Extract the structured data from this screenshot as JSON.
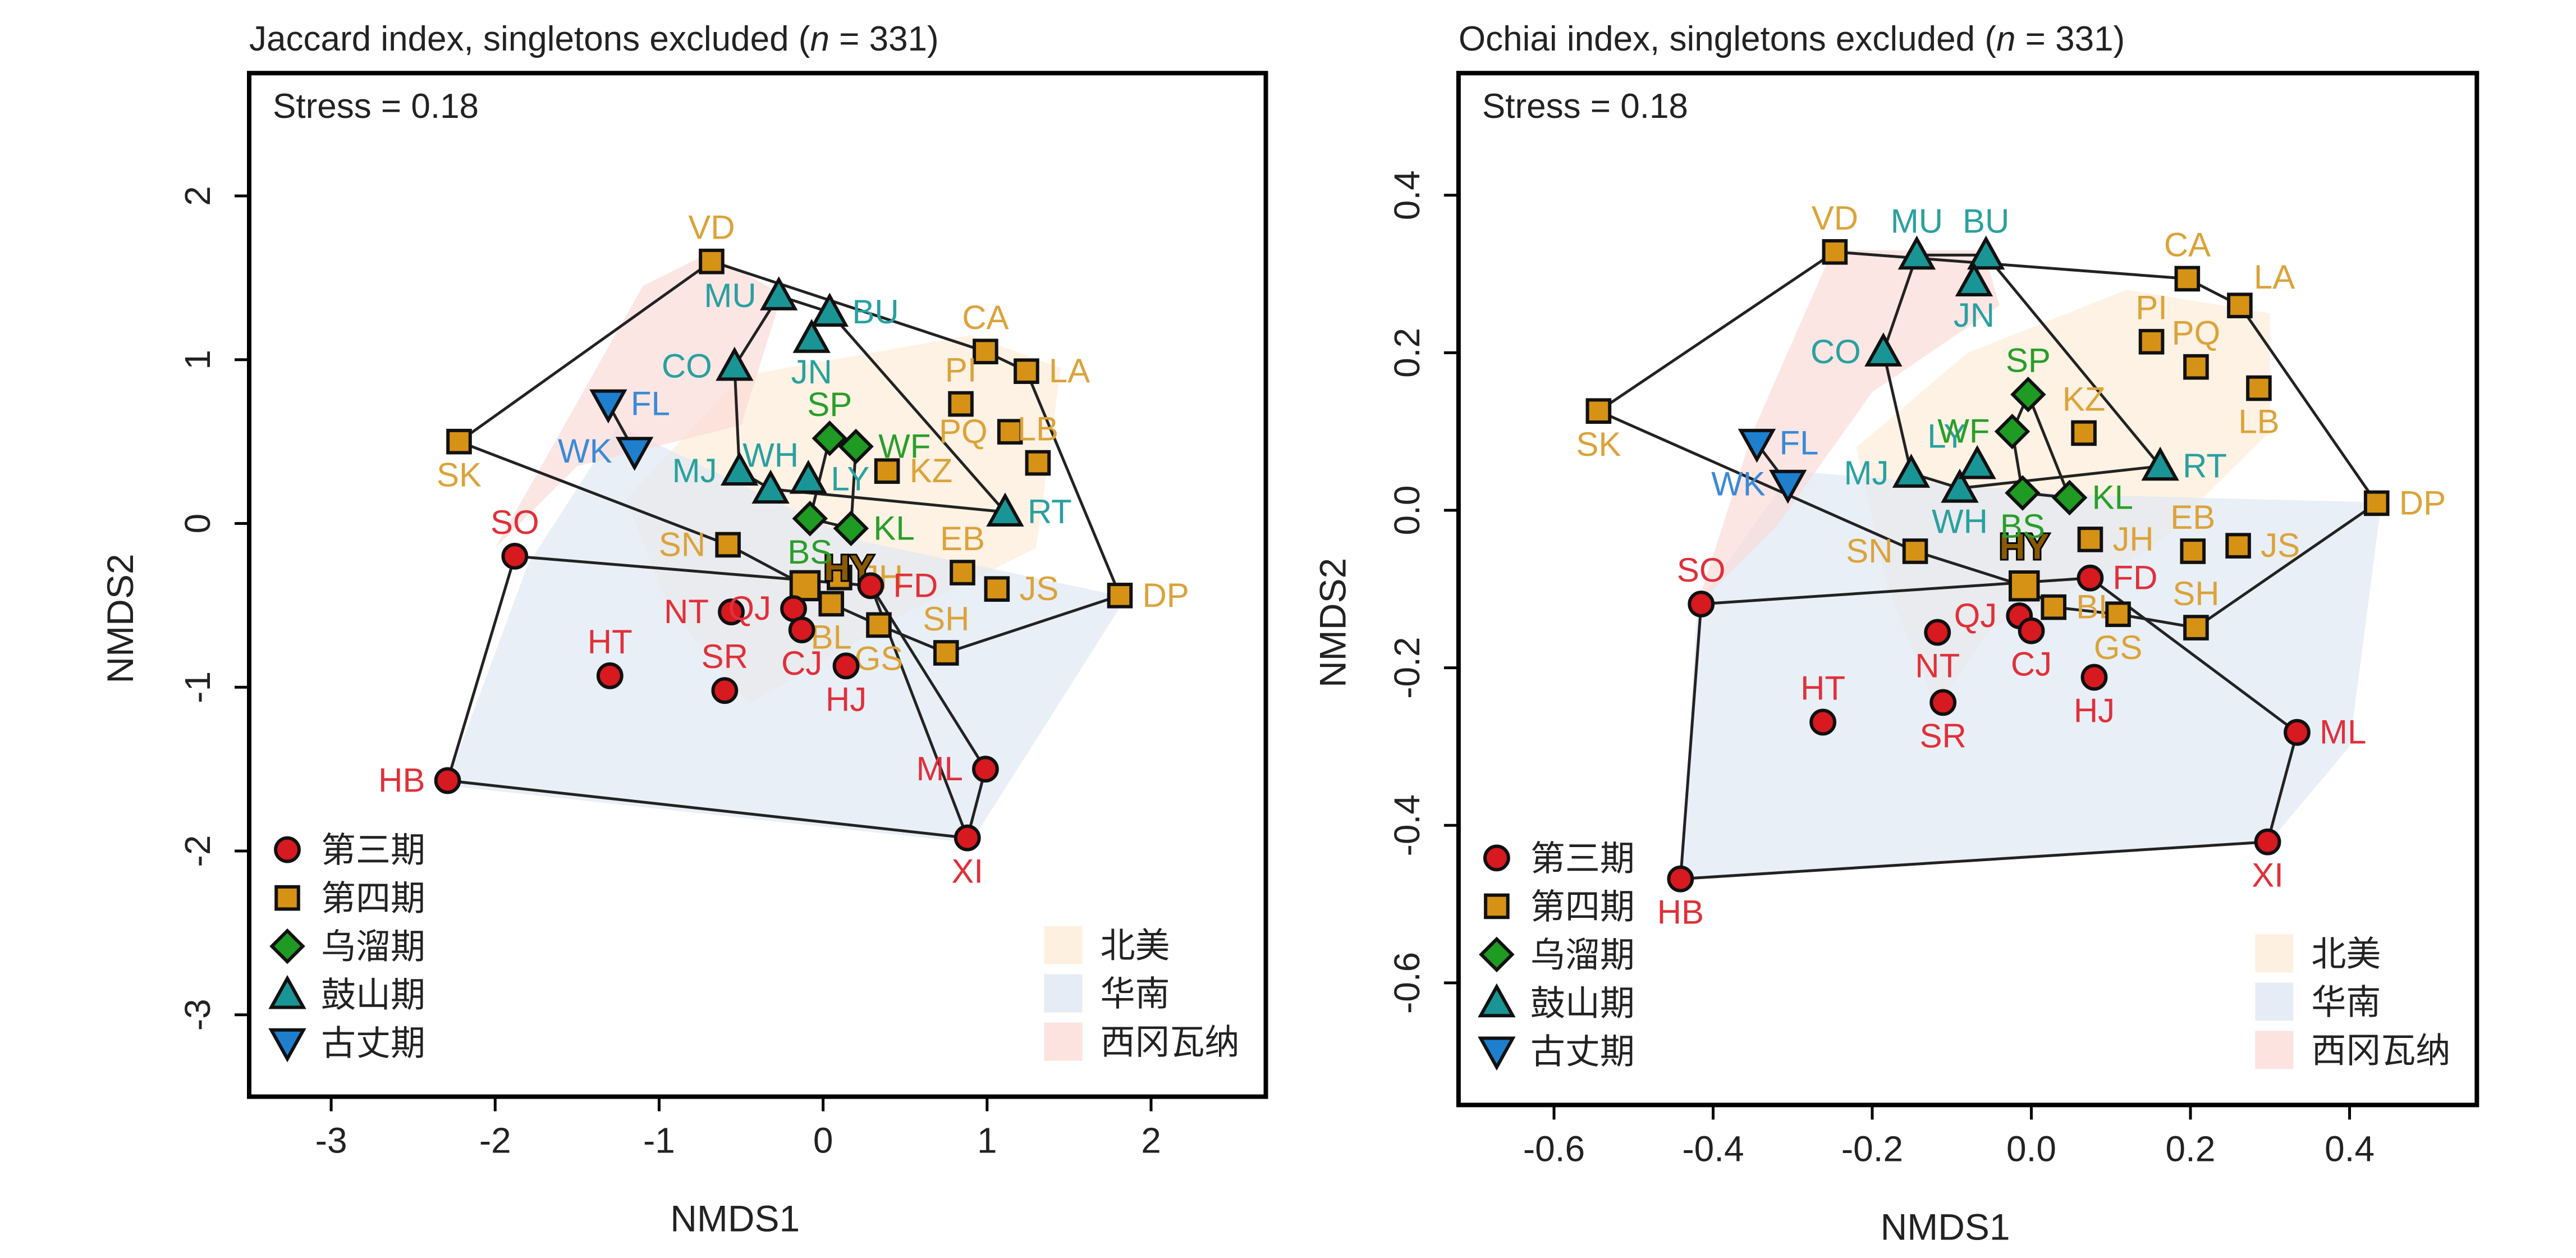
{
  "chart_data": [
    {
      "type": "scatter",
      "panel": "left",
      "title": "Jaccard index, singletons excluded (n = 331)",
      "title_parts": {
        "prefix": "Jaccard index, singletons excluded (",
        "italic": "n",
        "suffix": " = 331)"
      },
      "annotation": "Stress = 0.18",
      "xlabel": "NMDS1",
      "ylabel": "NMDS2",
      "xlim": [
        -3.5,
        2.7
      ],
      "ylim": [
        -3.5,
        2.75
      ],
      "xticks": [
        -3,
        -2,
        -1,
        0,
        1,
        2
      ],
      "xtick_labels": [
        "-3",
        "-2",
        "-1",
        "0",
        "1",
        "2"
      ],
      "yticks": [
        -3,
        -2,
        -1,
        0,
        1,
        2
      ],
      "ytick_labels": [
        "-3",
        "-2",
        "-1",
        "0",
        "1",
        "2"
      ],
      "grid": false,
      "points": [
        {
          "label": "VD",
          "group": "p4",
          "x": -0.68,
          "y": 1.6,
          "lp": "t"
        },
        {
          "label": "SK",
          "group": "p4",
          "x": -2.22,
          "y": 0.5,
          "lp": "b"
        },
        {
          "label": "CA",
          "group": "p4",
          "x": 0.99,
          "y": 1.05,
          "lp": "t"
        },
        {
          "label": "LA",
          "group": "p4",
          "x": 1.24,
          "y": 0.93,
          "lp": "r"
        },
        {
          "label": "PI",
          "group": "p4",
          "x": 0.84,
          "y": 0.73,
          "lp": "t"
        },
        {
          "label": "PQ",
          "group": "p4",
          "x": 1.14,
          "y": 0.56,
          "lp": "l"
        },
        {
          "label": "LB",
          "group": "p4",
          "x": 1.31,
          "y": 0.37,
          "lp": "t"
        },
        {
          "label": "KZ",
          "group": "p4",
          "x": 0.39,
          "y": 0.32,
          "lp": "r"
        },
        {
          "label": "SN",
          "group": "p4",
          "x": -0.58,
          "y": -0.13,
          "lp": "l"
        },
        {
          "label": "EB",
          "group": "p4",
          "x": 0.85,
          "y": -0.3,
          "lp": "t"
        },
        {
          "label": "JS",
          "group": "p4",
          "x": 1.06,
          "y": -0.4,
          "lp": "r"
        },
        {
          "label": "DP",
          "group": "p4",
          "x": 1.81,
          "y": -0.44,
          "lp": "r"
        },
        {
          "label": "JH",
          "group": "p4",
          "x": 0.1,
          "y": -0.33,
          "lp": "r"
        },
        {
          "label": "HY",
          "group": "p4",
          "x": -0.11,
          "y": -0.38,
          "lp": "hy"
        },
        {
          "label": "BL",
          "group": "p4",
          "x": 0.05,
          "y": -0.49,
          "lp": "b"
        },
        {
          "label": "GS",
          "group": "p4",
          "x": 0.34,
          "y": -0.62,
          "lp": "b"
        },
        {
          "label": "SH",
          "group": "p4",
          "x": 0.75,
          "y": -0.79,
          "lp": "t"
        },
        {
          "label": "MU",
          "group": "gushan",
          "x": -0.27,
          "y": 1.39,
          "lp": "l"
        },
        {
          "label": "BU",
          "group": "gushan",
          "x": 0.04,
          "y": 1.29,
          "lp": "r"
        },
        {
          "label": "JN",
          "group": "gushan",
          "x": -0.07,
          "y": 1.13,
          "lp": "b"
        },
        {
          "label": "CO",
          "group": "gushan",
          "x": -0.54,
          "y": 0.96,
          "lp": "l"
        },
        {
          "label": "MJ",
          "group": "gushan",
          "x": -0.51,
          "y": 0.32,
          "lp": "l"
        },
        {
          "label": "WH",
          "group": "gushan",
          "x": -0.32,
          "y": 0.21,
          "lp": "t"
        },
        {
          "label": "LY",
          "group": "gushan",
          "x": -0.09,
          "y": 0.27,
          "lp": "r"
        },
        {
          "label": "RT",
          "group": "gushan",
          "x": 1.11,
          "y": 0.07,
          "lp": "r"
        },
        {
          "label": "SP",
          "group": "wuliu",
          "x": 0.04,
          "y": 0.52,
          "lp": "t"
        },
        {
          "label": "WF",
          "group": "wuliu",
          "x": 0.2,
          "y": 0.47,
          "lp": "r"
        },
        {
          "label": "BS",
          "group": "wuliu",
          "x": -0.08,
          "y": 0.03,
          "lp": "b"
        },
        {
          "label": "KL",
          "group": "wuliu",
          "x": 0.17,
          "y": -0.03,
          "lp": "r"
        },
        {
          "label": "FL",
          "group": "guzhang",
          "x": -1.31,
          "y": 0.73,
          "lp": "r"
        },
        {
          "label": "WK",
          "group": "guzhang",
          "x": -1.15,
          "y": 0.44,
          "lp": "l"
        },
        {
          "label": "SO",
          "group": "p3",
          "x": -1.88,
          "y": -0.2,
          "lp": "t"
        },
        {
          "label": "HT",
          "group": "p3",
          "x": -1.3,
          "y": -0.93,
          "lp": "t"
        },
        {
          "label": "SR",
          "group": "p3",
          "x": -0.6,
          "y": -1.02,
          "lp": "t"
        },
        {
          "label": "NT",
          "group": "p3",
          "x": -0.56,
          "y": -0.54,
          "lp": "l"
        },
        {
          "label": "QJ",
          "group": "p3",
          "x": -0.18,
          "y": -0.52,
          "lp": "l"
        },
        {
          "label": "CJ",
          "group": "p3",
          "x": -0.13,
          "y": -0.65,
          "lp": "b"
        },
        {
          "label": "FD",
          "group": "p3",
          "x": 0.29,
          "y": -0.38,
          "lp": "r"
        },
        {
          "label": "HJ",
          "group": "p3",
          "x": 0.14,
          "y": -0.87,
          "lp": "b"
        },
        {
          "label": "ML",
          "group": "p3",
          "x": 0.99,
          "y": -1.5,
          "lp": "l"
        },
        {
          "label": "XI",
          "group": "p3",
          "x": 0.88,
          "y": -1.92,
          "lp": "b"
        },
        {
          "label": "HB",
          "group": "p3",
          "x": -2.29,
          "y": -1.57,
          "lp": "l"
        }
      ],
      "hulls": [
        {
          "group": "p4",
          "vertices": [
            "SK",
            "VD",
            "CA",
            "LA",
            "DP",
            "SH",
            "GS",
            "BL",
            "HY",
            "SN"
          ]
        },
        {
          "group": "p3",
          "vertices": [
            "SO",
            "FD",
            "XI",
            "HB"
          ],
          "extra_edges": [
            [
              "FD",
              "ML"
            ],
            [
              "ML",
              "XI"
            ]
          ]
        },
        {
          "group": "gushan",
          "vertices": [
            "MU",
            "BU",
            "RT",
            "WH",
            "MJ",
            "CO"
          ]
        },
        {
          "group": "wuliu",
          "vertices": [
            "SP",
            "WF",
            "KL",
            "BS"
          ]
        },
        {
          "group": "guzhang",
          "vertices": [
            "FL",
            "WK"
          ]
        }
      ],
      "regions": [
        {
          "key": "na",
          "polygon": [
            [
              -1.2,
              0.15
            ],
            [
              -0.5,
              0.9
            ],
            [
              0.9,
              1.15
            ],
            [
              1.45,
              0.95
            ],
            [
              1.3,
              -0.15
            ],
            [
              0.5,
              -0.55
            ],
            [
              -0.45,
              -1.1
            ],
            [
              -0.95,
              -0.5
            ]
          ]
        },
        {
          "key": "sc",
          "polygon": [
            [
              -2.3,
              -1.6
            ],
            [
              -1.8,
              -0.25
            ],
            [
              -1.25,
              0.6
            ],
            [
              0.2,
              -0.1
            ],
            [
              1.85,
              -0.45
            ],
            [
              0.9,
              -1.95
            ]
          ]
        },
        {
          "key": "wg",
          "polygon": [
            [
              -2.0,
              -0.15
            ],
            [
              -1.1,
              1.45
            ],
            [
              -0.7,
              1.65
            ],
            [
              -0.25,
              1.4
            ],
            [
              -0.5,
              0.6
            ],
            [
              -1.5,
              0.35
            ]
          ]
        }
      ]
    },
    {
      "type": "scatter",
      "panel": "right",
      "title": "Ochiai index, singletons excluded (n = 331)",
      "title_parts": {
        "prefix": "Ochiai index, singletons excluded (",
        "italic": "n",
        "suffix": " = 331)"
      },
      "annotation": "Stress = 0.18",
      "xlabel": "NMDS1",
      "ylabel": "NMDS2",
      "xlim": [
        -0.72,
        0.56
      ],
      "ylim": [
        -0.755,
        0.555
      ],
      "xticks": [
        -0.6,
        -0.4,
        -0.2,
        0.0,
        0.2,
        0.4
      ],
      "xtick_labels": [
        "-0.6",
        "-0.4",
        "-0.2",
        "0.0",
        "0.2",
        "0.4"
      ],
      "yticks": [
        -0.6,
        -0.4,
        -0.2,
        0.0,
        0.2,
        0.4
      ],
      "ytick_labels": [
        "-0.6",
        "-0.4",
        "-0.2",
        "0.0",
        "0.2",
        "0.4"
      ],
      "grid": false,
      "points": [
        {
          "label": "VD",
          "group": "p4",
          "x": -0.247,
          "y": 0.328,
          "lp": "t"
        },
        {
          "label": "SK",
          "group": "p4",
          "x": -0.544,
          "y": 0.126,
          "lp": "b"
        },
        {
          "label": "CA",
          "group": "p4",
          "x": 0.196,
          "y": 0.294,
          "lp": "t"
        },
        {
          "label": "LA",
          "group": "p4",
          "x": 0.262,
          "y": 0.26,
          "lp": "tr"
        },
        {
          "label": "PI",
          "group": "p4",
          "x": 0.151,
          "y": 0.214,
          "lp": "t"
        },
        {
          "label": "PQ",
          "group": "p4",
          "x": 0.207,
          "y": 0.182,
          "lp": "t"
        },
        {
          "label": "LB",
          "group": "p4",
          "x": 0.286,
          "y": 0.155,
          "lp": "b"
        },
        {
          "label": "KZ",
          "group": "p4",
          "x": 0.066,
          "y": 0.098,
          "lp": "t"
        },
        {
          "label": "SN",
          "group": "p4",
          "x": -0.146,
          "y": -0.052,
          "lp": "l"
        },
        {
          "label": "JH",
          "group": "p4",
          "x": 0.074,
          "y": -0.037,
          "lp": "r"
        },
        {
          "label": "EB",
          "group": "p4",
          "x": 0.203,
          "y": -0.052,
          "lp": "t"
        },
        {
          "label": "JS",
          "group": "p4",
          "x": 0.26,
          "y": -0.045,
          "lp": "r"
        },
        {
          "label": "DP",
          "group": "p4",
          "x": 0.434,
          "y": 0.009,
          "lp": "r"
        },
        {
          "label": "HY",
          "group": "p4",
          "x": -0.009,
          "y": -0.096,
          "lp": "hy"
        },
        {
          "label": "BL",
          "group": "p4",
          "x": 0.028,
          "y": -0.123,
          "lp": "r"
        },
        {
          "label": "GS",
          "group": "p4",
          "x": 0.109,
          "y": -0.132,
          "lp": "b"
        },
        {
          "label": "SH",
          "group": "p4",
          "x": 0.207,
          "y": -0.149,
          "lp": "t"
        },
        {
          "label": "MU",
          "group": "gushan",
          "x": -0.144,
          "y": 0.324,
          "lp": "t"
        },
        {
          "label": "BU",
          "group": "gushan",
          "x": -0.057,
          "y": 0.324,
          "lp": "t"
        },
        {
          "label": "JN",
          "group": "gushan",
          "x": -0.072,
          "y": 0.29,
          "lp": "b"
        },
        {
          "label": "CO",
          "group": "gushan",
          "x": -0.186,
          "y": 0.201,
          "lp": "l"
        },
        {
          "label": "MJ",
          "group": "gushan",
          "x": -0.151,
          "y": 0.047,
          "lp": "l"
        },
        {
          "label": "WH",
          "group": "gushan",
          "x": -0.09,
          "y": 0.028,
          "lp": "b"
        },
        {
          "label": "LY",
          "group": "gushan",
          "x": -0.068,
          "y": 0.058,
          "lp": "tl"
        },
        {
          "label": "RT",
          "group": "gushan",
          "x": 0.162,
          "y": 0.056,
          "lp": "r"
        },
        {
          "label": "SP",
          "group": "wuliu",
          "x": -0.004,
          "y": 0.147,
          "lp": "t"
        },
        {
          "label": "WF",
          "group": "wuliu",
          "x": -0.024,
          "y": 0.1,
          "lp": "l"
        },
        {
          "label": "BS",
          "group": "wuliu",
          "x": -0.011,
          "y": 0.022,
          "lp": "b"
        },
        {
          "label": "KL",
          "group": "wuliu",
          "x": 0.048,
          "y": 0.016,
          "lp": "r"
        },
        {
          "label": "FL",
          "group": "guzhang",
          "x": -0.345,
          "y": 0.085,
          "lp": "r"
        },
        {
          "label": "WK",
          "group": "guzhang",
          "x": -0.306,
          "y": 0.033,
          "lp": "l"
        },
        {
          "label": "SO",
          "group": "p3",
          "x": -0.415,
          "y": -0.119,
          "lp": "t"
        },
        {
          "label": "HT",
          "group": "p3",
          "x": -0.262,
          "y": -0.269,
          "lp": "t"
        },
        {
          "label": "SR",
          "group": "p3",
          "x": -0.111,
          "y": -0.244,
          "lp": "b"
        },
        {
          "label": "NT",
          "group": "p3",
          "x": -0.118,
          "y": -0.155,
          "lp": "b"
        },
        {
          "label": "QJ",
          "group": "p3",
          "x": -0.015,
          "y": -0.134,
          "lp": "l"
        },
        {
          "label": "CJ",
          "group": "p3",
          "x": 0.0,
          "y": -0.153,
          "lp": "b"
        },
        {
          "label": "FD",
          "group": "p3",
          "x": 0.074,
          "y": -0.086,
          "lp": "r"
        },
        {
          "label": "HJ",
          "group": "p3",
          "x": 0.079,
          "y": -0.212,
          "lp": "b"
        },
        {
          "label": "ML",
          "group": "p3",
          "x": 0.334,
          "y": -0.282,
          "lp": "r"
        },
        {
          "label": "XI",
          "group": "p3",
          "x": 0.297,
          "y": -0.421,
          "lp": "b"
        },
        {
          "label": "HB",
          "group": "p3",
          "x": -0.441,
          "y": -0.468,
          "lp": "b"
        }
      ],
      "hulls": [
        {
          "group": "p4",
          "vertices": [
            "SK",
            "VD",
            "CA",
            "LA",
            "DP",
            "SH",
            "GS",
            "BL",
            "HY",
            "SN"
          ]
        },
        {
          "group": "p3",
          "vertices": [
            "SO",
            "FD",
            "ML",
            "XI",
            "HB"
          ]
        },
        {
          "group": "gushan",
          "vertices": [
            "MU",
            "BU",
            "RT",
            "WH",
            "MJ",
            "CO"
          ]
        },
        {
          "group": "wuliu",
          "vertices": [
            "SP",
            "KL",
            "BS",
            "WF"
          ]
        },
        {
          "group": "guzhang",
          "vertices": [
            "FL",
            "WK"
          ]
        }
      ],
      "regions": [
        {
          "key": "na",
          "polygon": [
            [
              -0.22,
              0.08
            ],
            [
              -0.08,
              0.2
            ],
            [
              0.12,
              0.28
            ],
            [
              0.3,
              0.25
            ],
            [
              0.3,
              0.1
            ],
            [
              0.15,
              -0.05
            ],
            [
              -0.05,
              -0.15
            ],
            [
              -0.12,
              -0.25
            ],
            [
              -0.18,
              -0.1
            ]
          ]
        },
        {
          "key": "sc",
          "polygon": [
            [
              -0.44,
              -0.47
            ],
            [
              -0.42,
              -0.12
            ],
            [
              -0.3,
              0.05
            ],
            [
              0.05,
              0.02
            ],
            [
              0.44,
              0.01
            ],
            [
              0.4,
              -0.3
            ],
            [
              0.3,
              -0.42
            ]
          ]
        },
        {
          "key": "wg",
          "polygon": [
            [
              -0.42,
              -0.12
            ],
            [
              -0.35,
              0.1
            ],
            [
              -0.25,
              0.33
            ],
            [
              -0.06,
              0.33
            ],
            [
              -0.04,
              0.26
            ],
            [
              -0.2,
              0.15
            ],
            [
              -0.32,
              -0.02
            ]
          ]
        }
      ]
    }
  ],
  "groups": {
    "p3": {
      "name": "第三期",
      "shape": "circle",
      "fill": "#d71920",
      "label_color": "#e0303a"
    },
    "p4": {
      "name": "第四期",
      "shape": "square",
      "fill": "#d69215",
      "label_color": "#dba33a"
    },
    "wuliu": {
      "name": "乌溜期",
      "shape": "diamond",
      "fill": "#1f9a22",
      "label_color": "#2a9e2a"
    },
    "gushan": {
      "name": "鼓山期",
      "shape": "triangle-up",
      "fill": "#1a9595",
      "label_color": "#2aa0a0"
    },
    "guzhang": {
      "name": "古丈期",
      "shape": "triangle-down",
      "fill": "#1e7fcf",
      "label_color": "#3a8ad6"
    }
  },
  "group_order": [
    "p3",
    "p4",
    "wuliu",
    "gushan",
    "guzhang"
  ],
  "regions": {
    "na": {
      "name": "北美",
      "color": "#fdebd6"
    },
    "sc": {
      "name": "华南",
      "color": "#dde6f2"
    },
    "wg": {
      "name": "西冈瓦纳",
      "color": "#fbd9d6"
    }
  },
  "region_order": [
    "na",
    "sc",
    "wg"
  ]
}
